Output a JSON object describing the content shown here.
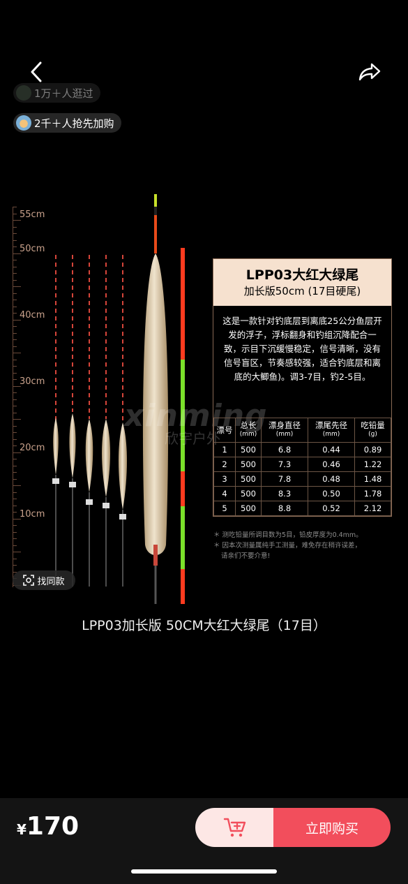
{
  "header": {
    "viewed_text": "1万＋人逛过",
    "added_text": "2千＋人抢先加购"
  },
  "ruler": {
    "labels": [
      "55cm",
      "50cm",
      "40cm",
      "30cm",
      "20cm",
      "10cm"
    ]
  },
  "watermark": {
    "brand": "xinming",
    "cn": "欣宇户外"
  },
  "card": {
    "title": "LPP03大红大绿尾",
    "subtitle": "加长版50cm (17目硬尾)",
    "description": "这是一款针对钓底层到离底25公分鱼层开发的浮子，浮标翻身和钓组沉降配合一致，示目下沉缓慢稳定，信号清晰，没有信号盲区，节奏感较强，适合钓底层和离底的大鲫鱼)。调3-7目，钓2-5目。",
    "columns": [
      {
        "label": "漂号",
        "unit": ""
      },
      {
        "label": "总长",
        "unit": "(mm)"
      },
      {
        "label": "漂身直径",
        "unit": "(mm)"
      },
      {
        "label": "漂尾先径",
        "unit": "(mm)"
      },
      {
        "label": "吃铅量",
        "unit": "(g)"
      }
    ],
    "rows": [
      [
        "1",
        "500",
        "6.8",
        "0.44",
        "0.89"
      ],
      [
        "2",
        "500",
        "7.3",
        "0.46",
        "1.22"
      ],
      [
        "3",
        "500",
        "7.8",
        "0.48",
        "1.48"
      ],
      [
        "4",
        "500",
        "8.3",
        "0.50",
        "1.78"
      ],
      [
        "5",
        "500",
        "8.8",
        "0.52",
        "2.12"
      ]
    ]
  },
  "notes": {
    "note1": "＊ 测吃铅量所调目数为5目，铅皮厚度为0.4mm。",
    "note2": "＊ 因本次测量属纯手工测量，难免存在稍许误差，",
    "note3": "请亲们不要介意!"
  },
  "find_similar": "找同款",
  "caption": "LPP03加长版 50CM大红大绿尾（17目）",
  "bottom": {
    "currency": "¥",
    "price": "170",
    "buy_label": "立即购买"
  },
  "colors": {
    "buy_button": "#f24e5c",
    "cart_button_bg": "#fde7e5",
    "card_head": "#f6e1cf",
    "tail_red": "#ff3b1f",
    "tail_green": "#7be02a"
  }
}
